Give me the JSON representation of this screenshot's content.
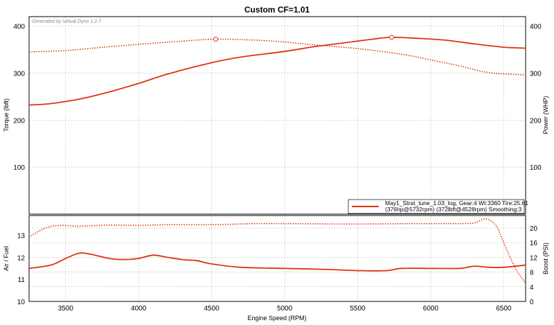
{
  "chart_data": {
    "title": "Custom CF=1.01",
    "watermark": "Generated by Virtual Dyno 1.2.7",
    "xlabel": "Engine Speed (RPM)",
    "x_ticks": [
      3500,
      4000,
      4500,
      5000,
      5500,
      6000,
      6500
    ],
    "xlim": [
      3250,
      6650
    ],
    "colors": {
      "line": "#e03010",
      "grid": "#b8b8b8",
      "frame": "#000000"
    },
    "panels": [
      {
        "type": "line",
        "ylabel_left": "Torque (lbft)",
        "ylabel_right": "Power (WHP)",
        "ylim": [
          0,
          420
        ],
        "y_ticks": [
          100,
          200,
          300,
          400
        ],
        "grid": true,
        "series": [
          {
            "axis": "right",
            "style": "solid",
            "x": [
              3250,
              3400,
              3600,
              3800,
              4000,
              4200,
              4500,
              4700,
              5000,
              5200,
              5400,
              5600,
              5732,
              5900,
              6100,
              6300,
              6500,
              6650
            ],
            "y": [
              232,
              235,
              245,
              260,
              278,
              298,
              322,
              334,
              346,
              356,
              364,
              372,
              376,
              374,
              370,
              362,
              355,
              353
            ],
            "peak": {
              "x": 5732,
              "y": 376
            }
          },
          {
            "axis": "left",
            "style": "dotted",
            "x": [
              3250,
              3500,
              3800,
              4000,
              4300,
              4528,
              4800,
              5000,
              5200,
              5500,
              5800,
              6000,
              6200,
              6400,
              6650
            ],
            "y": [
              345,
              348,
              356,
              361,
              368,
              372,
              370,
              366,
              360,
              352,
              340,
              328,
              315,
              301,
              296
            ],
            "peak": {
              "x": 4528,
              "y": 372
            }
          }
        ],
        "legend": {
          "position": "bottom-right",
          "lines": [
            "May1_Strat_tune_1.03_log, Gear:4 Wt:3360 Tire:25.61",
            "(376hp@5732rpm) (372lbft@4528rpm) Smoothing:3"
          ]
        }
      },
      {
        "type": "line",
        "ylabel_left": "Air / Fuel",
        "ylabel_right": "Boost (PSI)",
        "ylim_left": [
          10,
          13.9
        ],
        "y_ticks_left": [
          10,
          11,
          12,
          13
        ],
        "ylim_right": [
          0,
          23.4
        ],
        "y_ticks_right": [
          0,
          4,
          8,
          12,
          16,
          20
        ],
        "grid": true,
        "series": [
          {
            "axis": "left",
            "style": "solid",
            "x": [
              3250,
              3400,
              3500,
              3600,
              3700,
              3800,
              3900,
              4000,
              4100,
              4200,
              4300,
              4400,
              4500,
              4700,
              5000,
              5300,
              5500,
              5700,
              5800,
              6000,
              6200,
              6300,
              6400,
              6500,
              6650
            ],
            "y": [
              11.5,
              11.65,
              11.95,
              12.2,
              12.1,
              11.95,
              11.9,
              11.95,
              12.1,
              12.0,
              11.9,
              11.85,
              11.7,
              11.55,
              11.5,
              11.45,
              11.4,
              11.4,
              11.5,
              11.5,
              11.5,
              11.6,
              11.55,
              11.55,
              11.65
            ]
          },
          {
            "axis": "right",
            "style": "dotted",
            "x": [
              3250,
              3350,
              3450,
              3600,
              3800,
              4000,
              4200,
              4500,
              4800,
              5000,
              5300,
              5600,
              5900,
              6200,
              6300,
              6380,
              6450,
              6500,
              6580,
              6650
            ],
            "y": [
              17.5,
              19.8,
              20.7,
              20.5,
              20.8,
              20.7,
              20.9,
              20.9,
              21.2,
              21.2,
              21.1,
              21.1,
              21.2,
              21.2,
              21.4,
              22.5,
              20.5,
              16.0,
              9.0,
              5.0
            ]
          }
        ]
      }
    ]
  }
}
